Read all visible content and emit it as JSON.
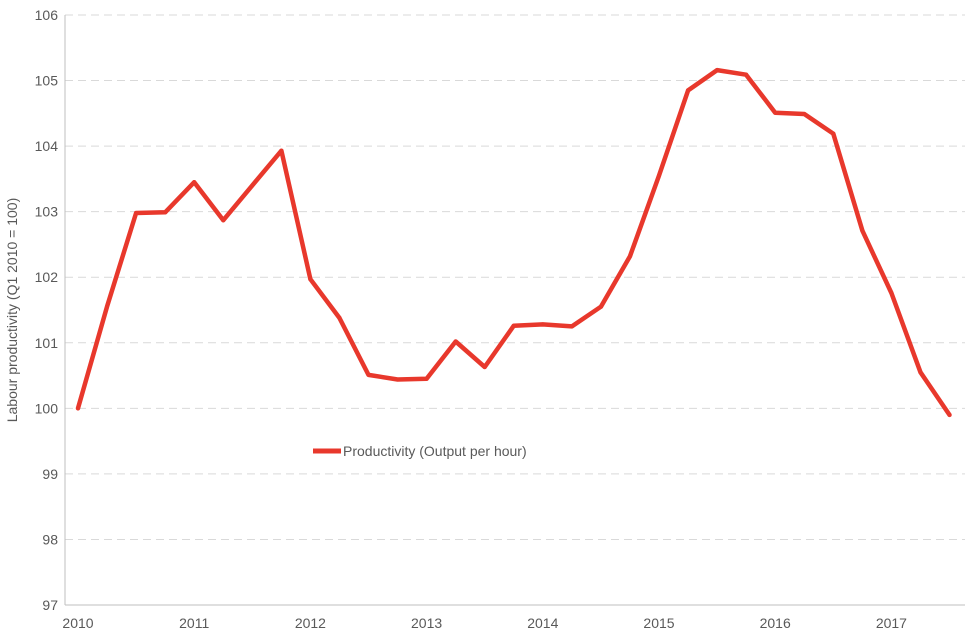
{
  "chart_data": {
    "type": "line",
    "title": "",
    "xlabel": "",
    "ylabel": "Labour productivity  (Q1 2010 = 100)",
    "ylim": [
      97,
      106
    ],
    "yticks": [
      97,
      98,
      99,
      100,
      101,
      102,
      103,
      104,
      105,
      106
    ],
    "xtick_labels": [
      "2010",
      "2011",
      "2012",
      "2013",
      "2014",
      "2015",
      "2016",
      "2017"
    ],
    "grid": "horizontal dashed",
    "legend_position": "center-left",
    "series": [
      {
        "name": "Productivity (Output per hour)",
        "color": "#e8382c",
        "x": [
          "2010 Q1",
          "2010 Q2",
          "2010 Q3",
          "2010 Q4",
          "2011 Q1",
          "2011 Q2",
          "2011 Q3",
          "2011 Q4",
          "2012 Q1",
          "2012 Q2",
          "2012 Q3",
          "2012 Q4",
          "2013 Q1",
          "2013 Q2",
          "2013 Q3",
          "2013 Q4",
          "2014 Q1",
          "2014 Q2",
          "2014 Q3",
          "2014 Q4",
          "2015 Q1",
          "2015 Q2",
          "2015 Q3",
          "2015 Q4",
          "2016 Q1",
          "2016 Q2",
          "2016 Q3",
          "2016 Q4",
          "2017 Q1",
          "2017 Q2",
          "2017 Q3"
        ],
        "values": [
          100.0,
          101.55,
          102.98,
          102.99,
          103.45,
          102.87,
          103.4,
          103.93,
          101.97,
          101.38,
          100.51,
          100.44,
          100.45,
          101.02,
          100.63,
          101.26,
          101.28,
          101.25,
          101.55,
          102.32,
          103.55,
          104.85,
          105.16,
          105.09,
          104.51,
          104.49,
          104.19,
          102.71,
          101.76,
          100.55,
          99.9
        ]
      }
    ]
  }
}
